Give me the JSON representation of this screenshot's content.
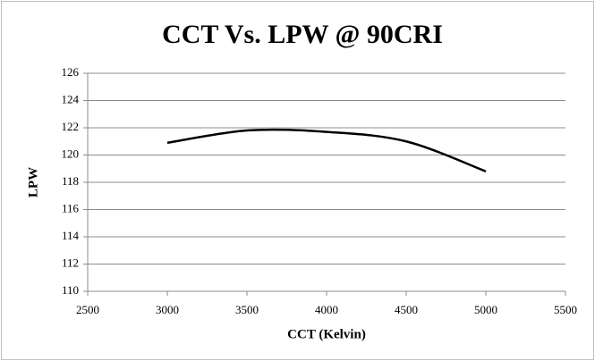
{
  "chart_data": {
    "type": "line",
    "title": "CCT Vs. LPW @ 90CRI",
    "x_label": "CCT (Kelvin)",
    "y_label": "LPW",
    "x": [
      3000,
      3500,
      4000,
      4500,
      5000
    ],
    "series": [
      {
        "name": "LPW",
        "color": "#000000",
        "values": [
          120.9,
          121.8,
          121.7,
          121.0,
          118.8
        ]
      }
    ],
    "xlim": [
      2500,
      5500
    ],
    "xticks": [
      2500,
      3000,
      3500,
      4000,
      4500,
      5000,
      5500
    ],
    "ylim": [
      110,
      126
    ],
    "yticks": [
      110,
      112,
      114,
      116,
      118,
      120,
      122,
      124,
      126
    ],
    "grid": true
  }
}
